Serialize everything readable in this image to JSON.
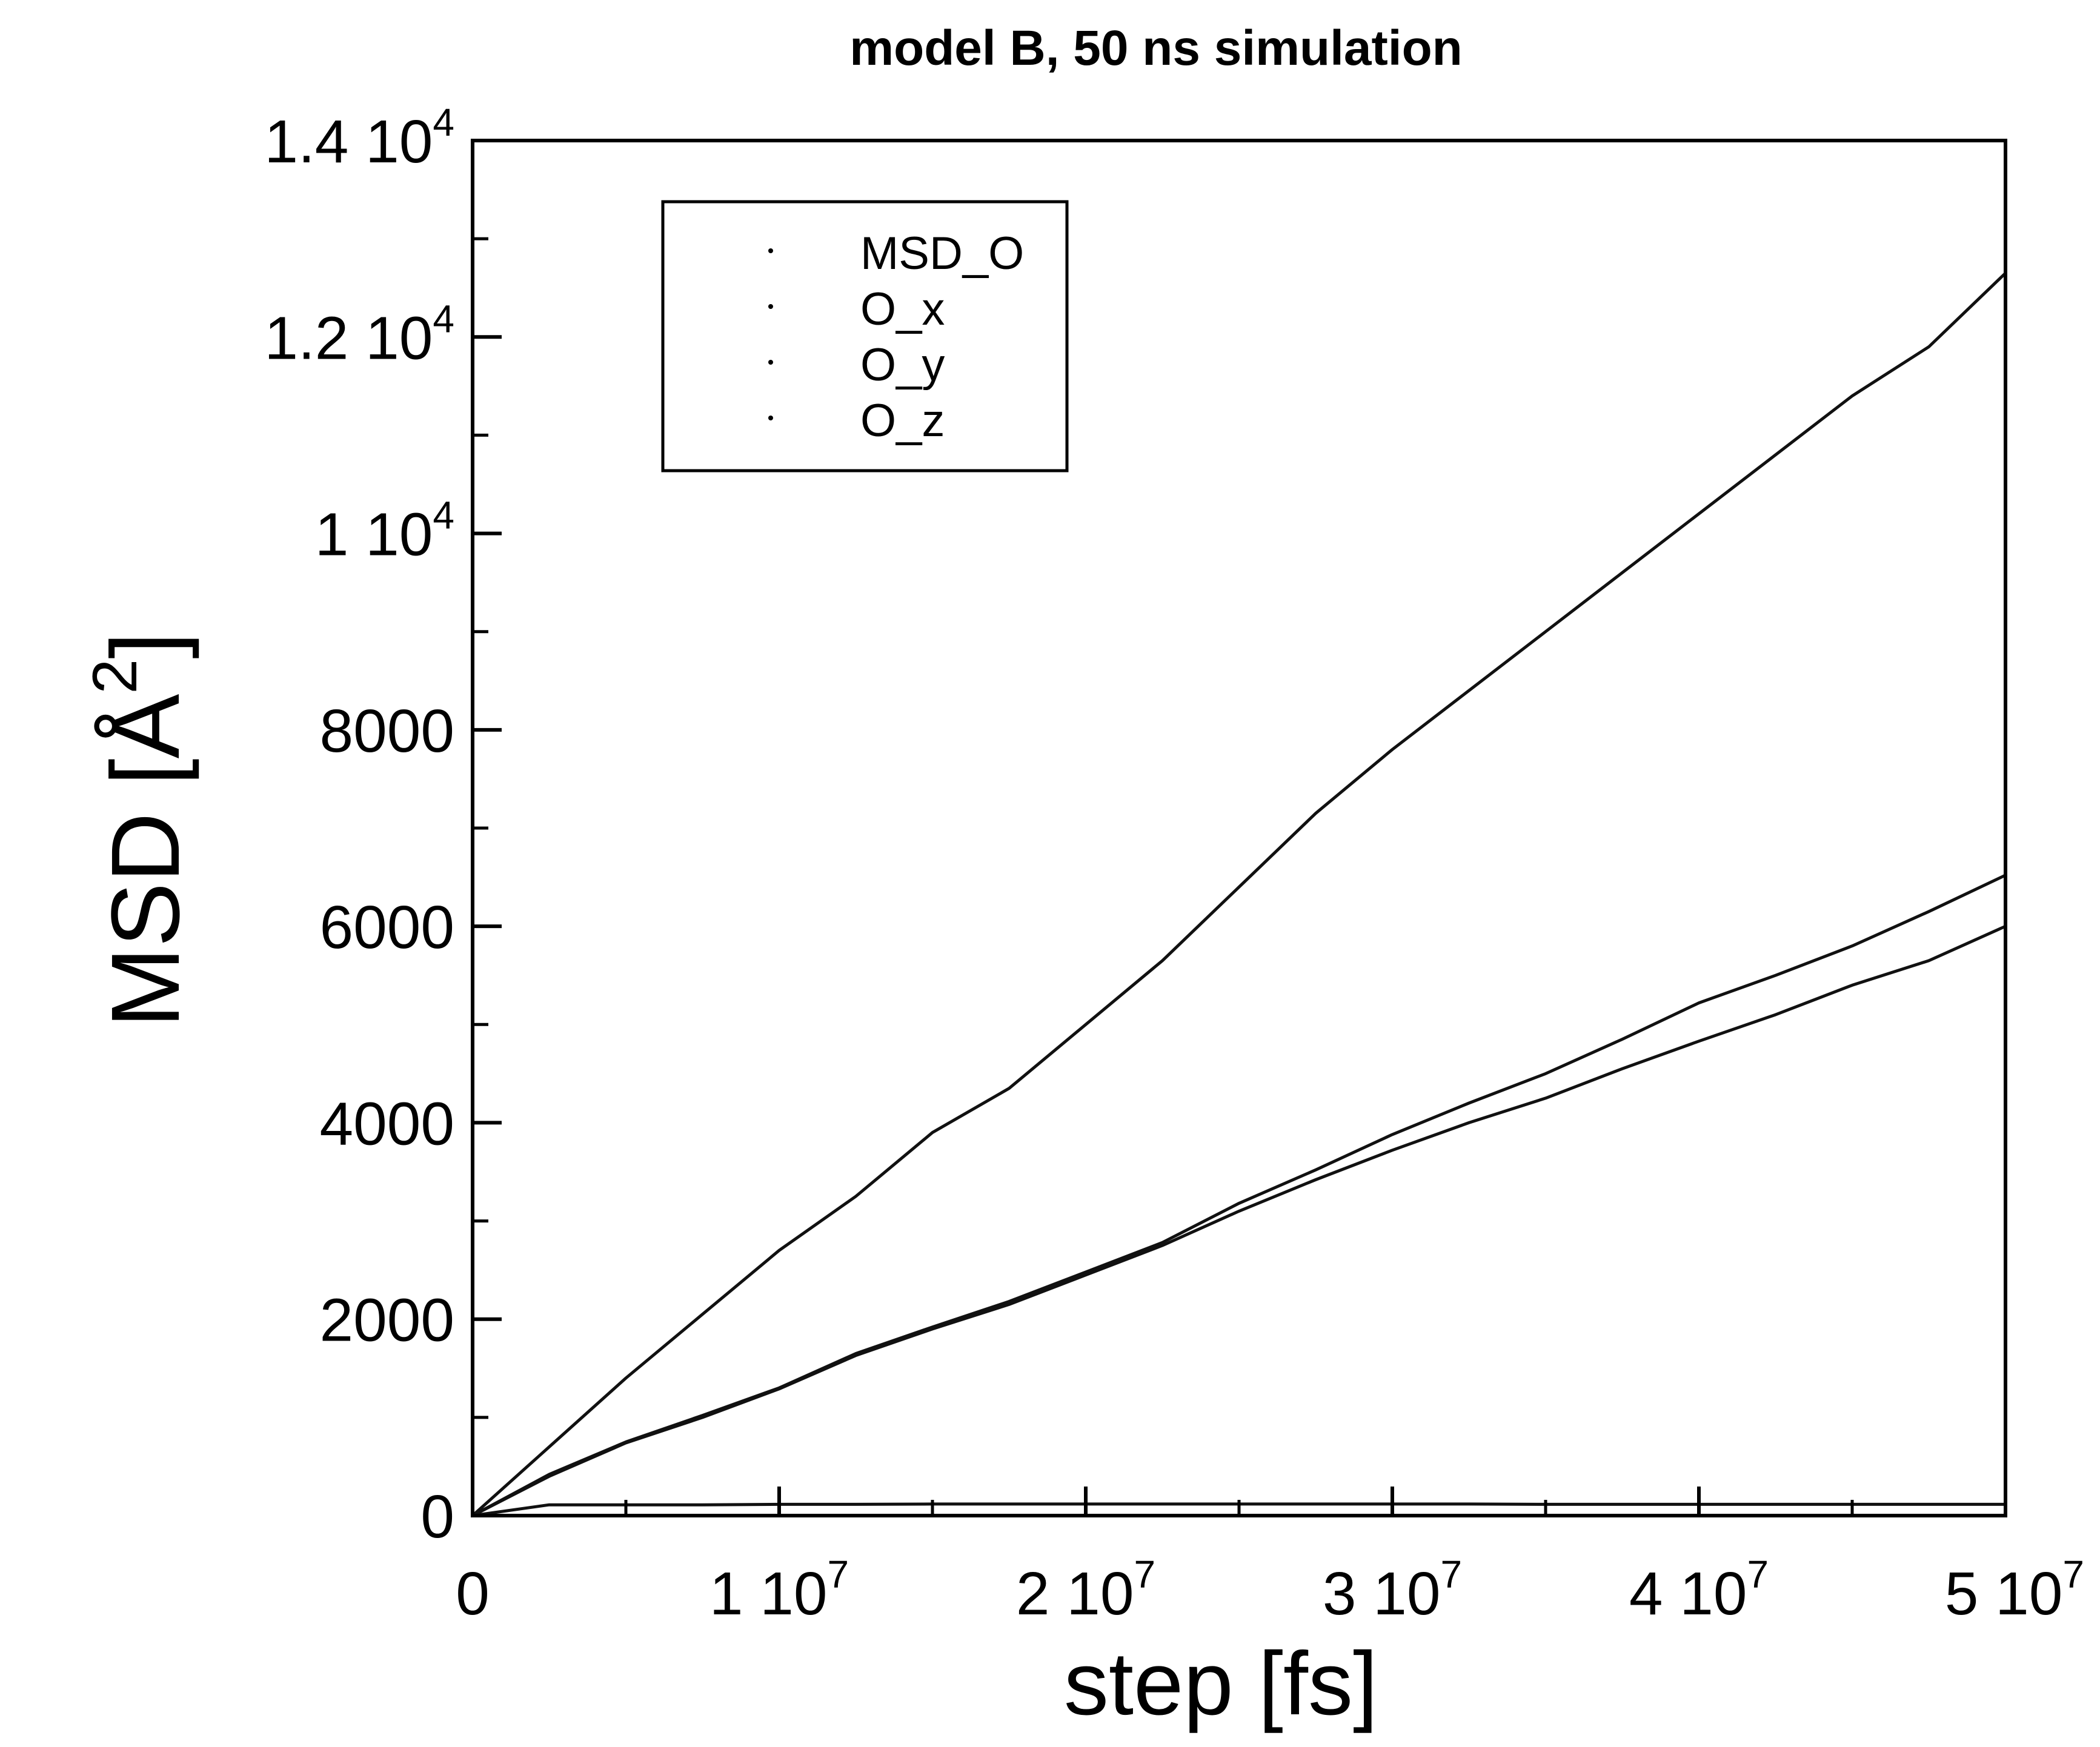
{
  "chart_data": {
    "type": "line",
    "title": "model B, 50 ns simulation",
    "xlabel": "step [fs]",
    "ylabel": {
      "main": "MSD [",
      "unit_base": "Å",
      "unit_exp": "2",
      "close": "]"
    },
    "xlim": [
      0,
      50000000
    ],
    "ylim": [
      0,
      14000
    ],
    "grid": false,
    "legend_position": "top-left",
    "line_color": "#111111",
    "x_ticks": [
      {
        "value": 0,
        "mantissa": "0",
        "exp": ""
      },
      {
        "value": 10000000,
        "mantissa": "1 10",
        "exp": "7"
      },
      {
        "value": 20000000,
        "mantissa": "2 10",
        "exp": "7"
      },
      {
        "value": 30000000,
        "mantissa": "3 10",
        "exp": "7"
      },
      {
        "value": 40000000,
        "mantissa": "4 10",
        "exp": "7"
      },
      {
        "value": 50000000,
        "mantissa": "5 10",
        "exp": "7"
      }
    ],
    "y_ticks": [
      {
        "value": 0,
        "mantissa": "0",
        "exp": ""
      },
      {
        "value": 2000,
        "mantissa": "2000",
        "exp": ""
      },
      {
        "value": 4000,
        "mantissa": "4000",
        "exp": ""
      },
      {
        "value": 6000,
        "mantissa": "6000",
        "exp": ""
      },
      {
        "value": 8000,
        "mantissa": "8000",
        "exp": ""
      },
      {
        "value": 10000,
        "mantissa": "1 10",
        "exp": "4"
      },
      {
        "value": 12000,
        "mantissa": "1.2 10",
        "exp": "4"
      },
      {
        "value": 14000,
        "mantissa": "1.4 10",
        "exp": "4"
      }
    ],
    "x": [
      0,
      2500000,
      5000000,
      7500000,
      10000000,
      12500000,
      15000000,
      17500000,
      20000000,
      22500000,
      25000000,
      27500000,
      30000000,
      32500000,
      35000000,
      37500000,
      40000000,
      42500000,
      45000000,
      47500000,
      50000000
    ],
    "series": [
      {
        "name": "MSD_O",
        "values": [
          0,
          700,
          1400,
          2050,
          2700,
          3250,
          3900,
          4350,
          5000,
          5650,
          6400,
          7150,
          7800,
          8400,
          9000,
          9600,
          10200,
          10800,
          11400,
          11900,
          12650
        ]
      },
      {
        "name": "O_x",
        "values": [
          0,
          420,
          750,
          1020,
          1300,
          1650,
          1920,
          2180,
          2480,
          2780,
          3180,
          3520,
          3880,
          4200,
          4500,
          4850,
          5220,
          5500,
          5800,
          6150,
          6520
        ]
      },
      {
        "name": "O_y",
        "values": [
          0,
          400,
          740,
          1000,
          1290,
          1630,
          1900,
          2150,
          2450,
          2750,
          3100,
          3420,
          3720,
          4000,
          4250,
          4550,
          4830,
          5100,
          5400,
          5650,
          6000
        ]
      },
      {
        "name": "O_z",
        "values": [
          0,
          110,
          110,
          110,
          115,
          115,
          118,
          118,
          118,
          118,
          118,
          118,
          118,
          118,
          115,
          115,
          115,
          115,
          115,
          115,
          115
        ]
      }
    ]
  }
}
